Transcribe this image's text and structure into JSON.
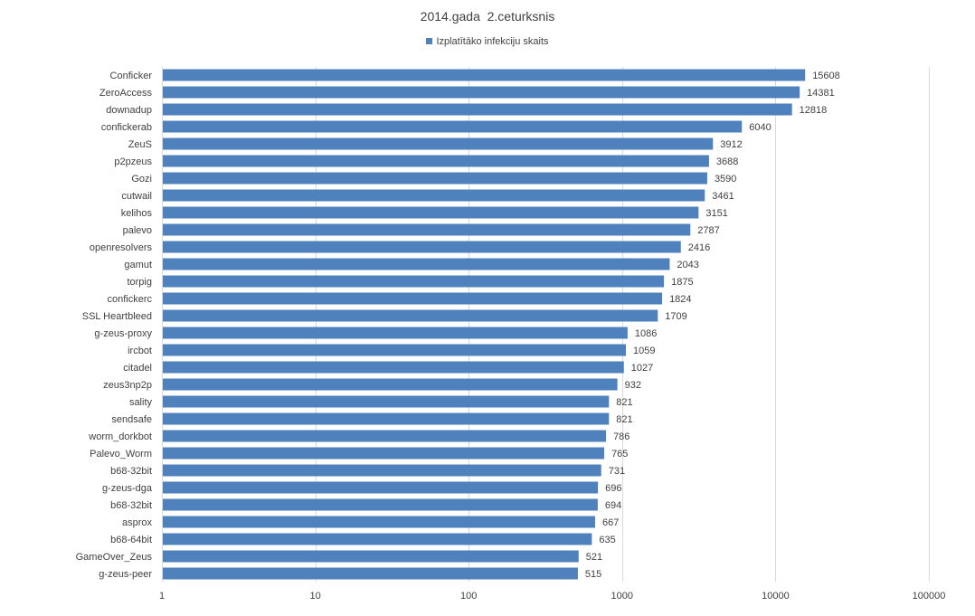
{
  "chart_data": {
    "type": "bar",
    "orientation": "horizontal",
    "title": "2014.gada  2.ceturksnis",
    "legend_position": "top",
    "x_scale": "log",
    "xlim": [
      1,
      100000
    ],
    "x_ticks": [
      "1",
      "10",
      "100",
      "1000",
      "10000",
      "100000"
    ],
    "x_tick_values": [
      1,
      10,
      100,
      1000,
      10000,
      100000
    ],
    "grid": true,
    "bar_color": "#4f81bd",
    "series": [
      {
        "name": "Izplatītāko infekciju skaits"
      }
    ],
    "categories": [
      "Conficker",
      "ZeroAccess",
      "downadup",
      "confickerab",
      "ZeuS",
      "p2pzeus",
      "Gozi",
      "cutwail",
      "kelihos",
      "palevo",
      "openresolvers",
      "gamut",
      "torpig",
      "confickerc",
      "SSL Heartbleed",
      "g-zeus-proxy",
      "ircbot",
      "citadel",
      "zeus3np2p",
      "sality",
      "sendsafe",
      "worm_dorkbot",
      "Palevo_Worm",
      "b68-32bit",
      "g-zeus-dga",
      "b68-32bit",
      "asprox",
      "b68-64bit",
      "GameOver_Zeus",
      "g-zeus-peer"
    ],
    "values": [
      15608,
      14381,
      12818,
      6040,
      3912,
      3688,
      3590,
      3461,
      3151,
      2787,
      2416,
      2043,
      1875,
      1824,
      1709,
      1086,
      1059,
      1027,
      932,
      821,
      821,
      786,
      765,
      731,
      696,
      694,
      667,
      635,
      521,
      515
    ]
  }
}
